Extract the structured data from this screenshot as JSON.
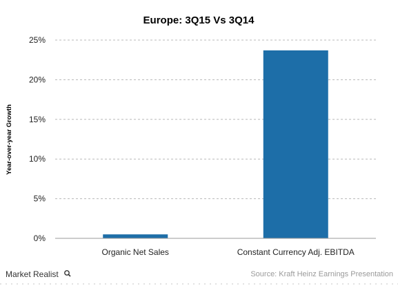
{
  "chart_data": {
    "type": "bar",
    "title": "Europe: 3Q15 Vs 3Q14",
    "xlabel": "",
    "ylabel": "Year-over-year Growth",
    "categories": [
      "Organic Net Sales",
      "Constant Currency Adj. EBITDA"
    ],
    "values": [
      0.5,
      23.7
    ],
    "ylim": [
      0,
      25
    ],
    "yticks": [
      0,
      5,
      10,
      15,
      20,
      25
    ],
    "ytick_labels": [
      "0%",
      "5%",
      "10%",
      "15%",
      "20%",
      "25%"
    ],
    "grid": true,
    "bar_color": "#1d6ea8"
  },
  "footer": {
    "brand": "Market Realist",
    "brand_icon": "magnifier-icon",
    "source": "Source: Kraft Heinz Earnings Presentation"
  }
}
